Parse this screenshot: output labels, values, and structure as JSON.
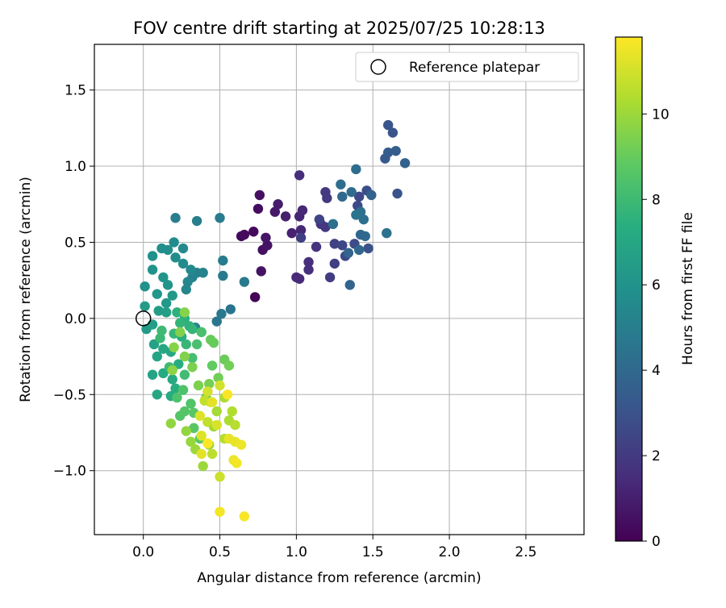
{
  "chart_data": {
    "type": "scatter",
    "title": "FOV centre drift starting at 2025/07/25 10:28:13",
    "xlabel": "Angular distance from reference (arcmin)",
    "ylabel": "Rotation from reference (arcmin)",
    "xlim": [
      -0.32,
      2.88
    ],
    "ylim": [
      -1.42,
      1.8
    ],
    "xticks": [
      0.0,
      0.5,
      1.0,
      1.5,
      2.0,
      2.5
    ],
    "xtick_labels": [
      "0.0",
      "0.5",
      "1.0",
      "1.5",
      "2.0",
      "2.5"
    ],
    "yticks": [
      -1.0,
      -0.5,
      0.0,
      0.5,
      1.0,
      1.5
    ],
    "ytick_labels": [
      "−1.0",
      "−0.5",
      "0.0",
      "0.5",
      "1.0",
      "1.5"
    ],
    "grid": true,
    "legend": {
      "position": "top-right",
      "entries": [
        "Reference platepar"
      ]
    },
    "reference_point": {
      "x": 0.0,
      "y": 0.0,
      "label": "Reference platepar",
      "marker": "open-circle"
    },
    "colormap": "viridis",
    "colorbar": {
      "label": "Hours from first FF file",
      "min": 0,
      "max": 11.8,
      "ticks": [
        0,
        2,
        4,
        6,
        8,
        10
      ],
      "tick_labels": [
        "0",
        "2",
        "4",
        "6",
        "8",
        "10"
      ]
    },
    "points": [
      {
        "x": 0.73,
        "y": 0.14,
        "h": 0.1
      },
      {
        "x": 0.64,
        "y": 0.54,
        "h": 0.2
      },
      {
        "x": 0.66,
        "y": 0.55,
        "h": 0.3
      },
      {
        "x": 0.72,
        "y": 0.57,
        "h": 0.3
      },
      {
        "x": 0.75,
        "y": 0.72,
        "h": 0.4
      },
      {
        "x": 0.76,
        "y": 0.81,
        "h": 0.5
      },
      {
        "x": 0.78,
        "y": 0.45,
        "h": 0.5
      },
      {
        "x": 0.77,
        "y": 0.31,
        "h": 0.6
      },
      {
        "x": 0.81,
        "y": 0.48,
        "h": 0.6
      },
      {
        "x": 0.8,
        "y": 0.53,
        "h": 0.7
      },
      {
        "x": 0.86,
        "y": 0.7,
        "h": 0.8
      },
      {
        "x": 0.88,
        "y": 0.75,
        "h": 0.9
      },
      {
        "x": 0.93,
        "y": 0.67,
        "h": 1.0
      },
      {
        "x": 0.97,
        "y": 0.56,
        "h": 1.1
      },
      {
        "x": 1.02,
        "y": 0.67,
        "h": 1.2
      },
      {
        "x": 1.04,
        "y": 0.71,
        "h": 1.3
      },
      {
        "x": 1.03,
        "y": 0.58,
        "h": 1.3
      },
      {
        "x": 1.0,
        "y": 0.27,
        "h": 1.4
      },
      {
        "x": 1.02,
        "y": 0.26,
        "h": 1.4
      },
      {
        "x": 1.02,
        "y": 0.94,
        "h": 1.5
      },
      {
        "x": 1.08,
        "y": 0.37,
        "h": 1.6
      },
      {
        "x": 1.08,
        "y": 0.32,
        "h": 1.6
      },
      {
        "x": 1.13,
        "y": 0.47,
        "h": 1.7
      },
      {
        "x": 1.16,
        "y": 0.62,
        "h": 1.8
      },
      {
        "x": 1.19,
        "y": 0.6,
        "h": 1.9
      },
      {
        "x": 1.19,
        "y": 0.83,
        "h": 1.9
      },
      {
        "x": 1.2,
        "y": 0.79,
        "h": 2.0
      },
      {
        "x": 1.22,
        "y": 0.27,
        "h": 2.1
      },
      {
        "x": 1.25,
        "y": 0.36,
        "h": 2.2
      },
      {
        "x": 1.25,
        "y": 0.49,
        "h": 2.3
      },
      {
        "x": 1.03,
        "y": 0.53,
        "h": 2.2
      },
      {
        "x": 1.15,
        "y": 0.65,
        "h": 2.4
      },
      {
        "x": 1.3,
        "y": 0.48,
        "h": 2.5
      },
      {
        "x": 1.32,
        "y": 0.41,
        "h": 2.6
      },
      {
        "x": 1.38,
        "y": 0.49,
        "h": 2.7
      },
      {
        "x": 1.4,
        "y": 0.74,
        "h": 2.6
      },
      {
        "x": 1.41,
        "y": 0.8,
        "h": 2.5
      },
      {
        "x": 1.46,
        "y": 0.84,
        "h": 2.8
      },
      {
        "x": 1.47,
        "y": 0.46,
        "h": 2.9
      },
      {
        "x": 1.66,
        "y": 0.82,
        "h": 3.0
      },
      {
        "x": 1.6,
        "y": 1.27,
        "h": 3.1
      },
      {
        "x": 1.63,
        "y": 1.22,
        "h": 3.1
      },
      {
        "x": 1.58,
        "y": 1.05,
        "h": 3.3
      },
      {
        "x": 1.6,
        "y": 1.09,
        "h": 3.4
      },
      {
        "x": 1.65,
        "y": 1.1,
        "h": 3.5
      },
      {
        "x": 1.71,
        "y": 1.02,
        "h": 3.6
      },
      {
        "x": 1.49,
        "y": 0.81,
        "h": 3.7
      },
      {
        "x": 1.35,
        "y": 0.22,
        "h": 3.8
      },
      {
        "x": 1.34,
        "y": 0.43,
        "h": 3.8
      },
      {
        "x": 1.41,
        "y": 0.45,
        "h": 3.9
      },
      {
        "x": 1.42,
        "y": 0.55,
        "h": 3.9
      },
      {
        "x": 1.45,
        "y": 0.54,
        "h": 4.0
      },
      {
        "x": 1.3,
        "y": 0.8,
        "h": 4.0
      },
      {
        "x": 1.36,
        "y": 0.83,
        "h": 4.1
      },
      {
        "x": 1.29,
        "y": 0.88,
        "h": 4.2
      },
      {
        "x": 1.39,
        "y": 0.98,
        "h": 4.2
      },
      {
        "x": 1.42,
        "y": 0.7,
        "h": 4.3
      },
      {
        "x": 1.44,
        "y": 0.65,
        "h": 4.3
      },
      {
        "x": 1.59,
        "y": 0.56,
        "h": 4.4
      },
      {
        "x": 1.24,
        "y": 0.62,
        "h": 4.4
      },
      {
        "x": 1.39,
        "y": 0.68,
        "h": 4.5
      },
      {
        "x": 0.57,
        "y": 0.06,
        "h": 4.5
      },
      {
        "x": 0.48,
        "y": -0.02,
        "h": 4.6
      },
      {
        "x": 0.51,
        "y": 0.03,
        "h": 4.7
      },
      {
        "x": 0.66,
        "y": 0.24,
        "h": 4.8
      },
      {
        "x": 0.52,
        "y": 0.28,
        "h": 4.8
      },
      {
        "x": 0.52,
        "y": 0.38,
        "h": 4.9
      },
      {
        "x": 0.5,
        "y": 0.66,
        "h": 4.9
      },
      {
        "x": 0.35,
        "y": 0.64,
        "h": 5.0
      },
      {
        "x": 0.21,
        "y": 0.66,
        "h": 5.0
      },
      {
        "x": 0.35,
        "y": 0.3,
        "h": 5.1
      },
      {
        "x": 0.32,
        "y": 0.27,
        "h": 5.2
      },
      {
        "x": 0.39,
        "y": 0.3,
        "h": 5.2
      },
      {
        "x": 0.34,
        "y": -0.06,
        "h": 5.3
      },
      {
        "x": 0.28,
        "y": 0.19,
        "h": 5.4
      },
      {
        "x": 0.29,
        "y": 0.24,
        "h": 5.4
      },
      {
        "x": 0.31,
        "y": 0.32,
        "h": 5.5
      },
      {
        "x": 0.26,
        "y": 0.46,
        "h": 5.5
      },
      {
        "x": 0.26,
        "y": 0.36,
        "h": 5.6
      },
      {
        "x": 0.21,
        "y": 0.4,
        "h": 5.7
      },
      {
        "x": 0.2,
        "y": 0.5,
        "h": 5.7
      },
      {
        "x": 0.16,
        "y": 0.45,
        "h": 5.8
      },
      {
        "x": 0.12,
        "y": 0.46,
        "h": 5.8
      },
      {
        "x": 0.06,
        "y": 0.41,
        "h": 5.9
      },
      {
        "x": 0.06,
        "y": 0.32,
        "h": 6.0
      },
      {
        "x": 0.01,
        "y": 0.21,
        "h": 6.0
      },
      {
        "x": 0.13,
        "y": 0.27,
        "h": 6.1
      },
      {
        "x": 0.16,
        "y": 0.22,
        "h": 6.1
      },
      {
        "x": 0.09,
        "y": 0.16,
        "h": 6.2
      },
      {
        "x": 0.15,
        "y": 0.1,
        "h": 6.3
      },
      {
        "x": 0.19,
        "y": 0.15,
        "h": 6.3
      },
      {
        "x": 0.01,
        "y": 0.08,
        "h": 6.4
      },
      {
        "x": 0.02,
        "y": -0.07,
        "h": 6.4
      },
      {
        "x": 0.1,
        "y": 0.05,
        "h": 6.5
      },
      {
        "x": 0.15,
        "y": 0.04,
        "h": 6.6
      },
      {
        "x": 0.06,
        "y": -0.04,
        "h": 6.6
      },
      {
        "x": 0.07,
        "y": -0.17,
        "h": 6.7
      },
      {
        "x": 0.09,
        "y": -0.25,
        "h": 6.8
      },
      {
        "x": 0.06,
        "y": -0.37,
        "h": 6.8
      },
      {
        "x": 0.09,
        "y": -0.5,
        "h": 6.9
      },
      {
        "x": 0.13,
        "y": -0.2,
        "h": 7.0
      },
      {
        "x": 0.18,
        "y": -0.22,
        "h": 7.0
      },
      {
        "x": 0.13,
        "y": -0.36,
        "h": 7.1
      },
      {
        "x": 0.19,
        "y": -0.4,
        "h": 7.1
      },
      {
        "x": 0.18,
        "y": -0.51,
        "h": 7.2
      },
      {
        "x": 0.21,
        "y": -0.46,
        "h": 7.3
      },
      {
        "x": 0.23,
        "y": -0.3,
        "h": 7.3
      },
      {
        "x": 0.25,
        "y": -0.12,
        "h": 7.4
      },
      {
        "x": 0.22,
        "y": 0.04,
        "h": 7.5
      },
      {
        "x": 0.27,
        "y": 0.0,
        "h": 7.5
      },
      {
        "x": 0.3,
        "y": -0.05,
        "h": 7.6
      },
      {
        "x": 0.24,
        "y": -0.03,
        "h": 7.7
      },
      {
        "x": 0.32,
        "y": -0.07,
        "h": 7.7
      },
      {
        "x": 0.28,
        "y": -0.17,
        "h": 7.8
      },
      {
        "x": 0.2,
        "y": -0.1,
        "h": 7.8
      },
      {
        "x": 0.11,
        "y": -0.13,
        "h": 7.9
      },
      {
        "x": 0.12,
        "y": -0.08,
        "h": 8.0
      },
      {
        "x": 0.17,
        "y": -0.32,
        "h": 8.0
      },
      {
        "x": 0.27,
        "y": -0.37,
        "h": 8.1
      },
      {
        "x": 0.32,
        "y": -0.26,
        "h": 8.2
      },
      {
        "x": 0.35,
        "y": -0.17,
        "h": 8.3
      },
      {
        "x": 0.38,
        "y": -0.09,
        "h": 8.3
      },
      {
        "x": 0.22,
        "y": -0.52,
        "h": 8.4
      },
      {
        "x": 0.26,
        "y": -0.47,
        "h": 8.4
      },
      {
        "x": 0.31,
        "y": -0.56,
        "h": 8.5
      },
      {
        "x": 0.27,
        "y": -0.61,
        "h": 8.6
      },
      {
        "x": 0.24,
        "y": -0.64,
        "h": 8.6
      },
      {
        "x": 0.33,
        "y": -0.62,
        "h": 8.7
      },
      {
        "x": 0.33,
        "y": -0.72,
        "h": 8.7
      },
      {
        "x": 0.37,
        "y": -0.79,
        "h": 8.8
      },
      {
        "x": 0.41,
        "y": -0.52,
        "h": 8.9
      },
      {
        "x": 0.45,
        "y": -0.31,
        "h": 8.9
      },
      {
        "x": 0.44,
        "y": -0.14,
        "h": 9.0
      },
      {
        "x": 0.46,
        "y": -0.16,
        "h": 9.0
      },
      {
        "x": 0.53,
        "y": -0.27,
        "h": 9.1
      },
      {
        "x": 0.56,
        "y": -0.31,
        "h": 9.2
      },
      {
        "x": 0.49,
        "y": -0.39,
        "h": 9.2
      },
      {
        "x": 0.43,
        "y": -0.43,
        "h": 9.3
      },
      {
        "x": 0.36,
        "y": -0.44,
        "h": 9.4
      },
      {
        "x": 0.32,
        "y": -0.32,
        "h": 9.4
      },
      {
        "x": 0.27,
        "y": -0.25,
        "h": 9.5
      },
      {
        "x": 0.24,
        "y": -0.09,
        "h": 9.5
      },
      {
        "x": 0.27,
        "y": 0.04,
        "h": 9.6
      },
      {
        "x": 0.2,
        "y": -0.19,
        "h": 9.6
      },
      {
        "x": 0.19,
        "y": -0.34,
        "h": 9.7
      },
      {
        "x": 0.18,
        "y": -0.69,
        "h": 9.8
      },
      {
        "x": 0.28,
        "y": -0.74,
        "h": 9.8
      },
      {
        "x": 0.31,
        "y": -0.81,
        "h": 9.9
      },
      {
        "x": 0.34,
        "y": -0.86,
        "h": 10.0
      },
      {
        "x": 0.39,
        "y": -0.97,
        "h": 10.0
      },
      {
        "x": 0.43,
        "y": -0.83,
        "h": 10.1
      },
      {
        "x": 0.46,
        "y": -0.71,
        "h": 10.1
      },
      {
        "x": 0.48,
        "y": -0.61,
        "h": 10.2
      },
      {
        "x": 0.53,
        "y": -0.52,
        "h": 10.3
      },
      {
        "x": 0.56,
        "y": -0.67,
        "h": 10.3
      },
      {
        "x": 0.58,
        "y": -0.61,
        "h": 10.4
      },
      {
        "x": 0.6,
        "y": -0.7,
        "h": 10.5
      },
      {
        "x": 0.53,
        "y": -0.79,
        "h": 10.5
      },
      {
        "x": 0.45,
        "y": -0.89,
        "h": 10.6
      },
      {
        "x": 0.42,
        "y": -0.68,
        "h": 10.7
      },
      {
        "x": 0.4,
        "y": -0.54,
        "h": 10.7
      },
      {
        "x": 0.44,
        "y": -0.55,
        "h": 10.8
      },
      {
        "x": 0.5,
        "y": -1.04,
        "h": 10.9
      },
      {
        "x": 0.5,
        "y": -0.44,
        "h": 11.0
      },
      {
        "x": 0.42,
        "y": -0.48,
        "h": 11.0
      },
      {
        "x": 0.48,
        "y": -0.7,
        "h": 11.1
      },
      {
        "x": 0.37,
        "y": -0.64,
        "h": 11.2
      },
      {
        "x": 0.38,
        "y": -0.77,
        "h": 11.2
      },
      {
        "x": 0.38,
        "y": -0.89,
        "h": 11.3
      },
      {
        "x": 0.45,
        "y": -0.55,
        "h": 11.3
      },
      {
        "x": 0.56,
        "y": -0.79,
        "h": 11.4
      },
      {
        "x": 0.6,
        "y": -0.81,
        "h": 11.4
      },
      {
        "x": 0.64,
        "y": -0.83,
        "h": 11.5
      },
      {
        "x": 0.59,
        "y": -0.93,
        "h": 11.5
      },
      {
        "x": 0.61,
        "y": -0.95,
        "h": 11.6
      },
      {
        "x": 0.5,
        "y": -1.27,
        "h": 11.6
      },
      {
        "x": 0.66,
        "y": -1.3,
        "h": 11.7
      },
      {
        "x": 0.55,
        "y": -0.5,
        "h": 11.7
      },
      {
        "x": 0.42,
        "y": -0.82,
        "h": 11.8
      }
    ]
  }
}
